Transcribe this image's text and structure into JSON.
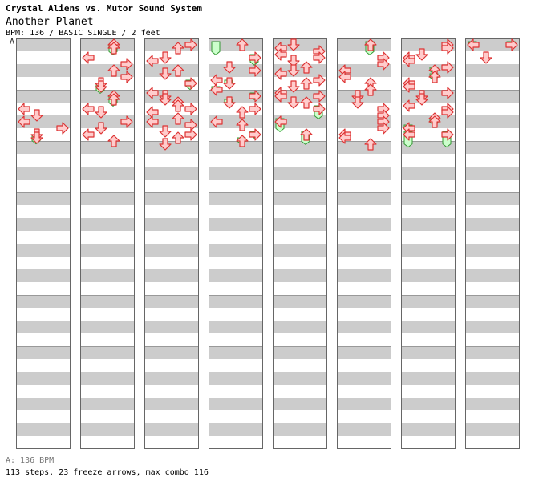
{
  "header": {
    "title": "Crystal Aliens vs. Mutor Sound System",
    "song": "Another Planet",
    "meta": "BPM: 136 / BASIC SINGLE / 2 feet",
    "bpm_marker": "A"
  },
  "footer": {
    "bpm_line": "A: 136 BPM",
    "stats": "113 steps, 23 freeze arrows, max combo 116"
  },
  "colors": {
    "stripe": "#cccccc",
    "arrow_fill": "#ffcccc",
    "arrow_stroke": "#dd3333",
    "freeze_fill": "#ccffcc",
    "freeze_stroke": "#339933",
    "frame": "#666666"
  },
  "chart_data": {
    "type": "step-chart",
    "columns": 8,
    "measures_per_column": 8,
    "lanes": [
      "left",
      "down",
      "up",
      "right"
    ],
    "beats_per_measure": 4,
    "arrows": [
      [
        0,
        5.0,
        "left"
      ],
      [
        0,
        5.5,
        "down"
      ],
      [
        0,
        6.0,
        "left"
      ],
      [
        0,
        6.5,
        "right"
      ],
      [
        0,
        7.0,
        "down"
      ],
      [
        0,
        7.25,
        "down"
      ],
      [
        1,
        0.0,
        "up"
      ],
      [
        1,
        0.25,
        "up"
      ],
      [
        1,
        1.0,
        "left"
      ],
      [
        1,
        1.5,
        "right"
      ],
      [
        1,
        2.0,
        "up"
      ],
      [
        1,
        2.5,
        "right"
      ],
      [
        1,
        3.0,
        "down"
      ],
      [
        1,
        3.25,
        "down"
      ],
      [
        1,
        4.0,
        "up"
      ],
      [
        1,
        4.25,
        "up"
      ],
      [
        1,
        5.0,
        "left"
      ],
      [
        1,
        5.25,
        "down"
      ],
      [
        1,
        6.0,
        "right"
      ],
      [
        1,
        6.5,
        "down"
      ],
      [
        1,
        7.0,
        "left"
      ],
      [
        1,
        7.5,
        "up"
      ],
      [
        2,
        0.0,
        "right"
      ],
      [
        2,
        0.25,
        "up"
      ],
      [
        2,
        1.0,
        "down"
      ],
      [
        2,
        1.25,
        "left"
      ],
      [
        2,
        2.0,
        "up"
      ],
      [
        2,
        2.25,
        "down"
      ],
      [
        2,
        3.0,
        "right"
      ],
      [
        2,
        3.75,
        "left"
      ],
      [
        2,
        4.0,
        "down"
      ],
      [
        2,
        4.25,
        "down"
      ],
      [
        2,
        4.5,
        "up"
      ],
      [
        2,
        4.75,
        "up"
      ],
      [
        2,
        5.0,
        "right"
      ],
      [
        2,
        5.25,
        "left"
      ],
      [
        2,
        5.75,
        "up"
      ],
      [
        2,
        6.0,
        "left"
      ],
      [
        2,
        6.25,
        "right"
      ],
      [
        2,
        6.75,
        "down"
      ],
      [
        2,
        7.0,
        "right"
      ],
      [
        2,
        7.25,
        "up"
      ],
      [
        2,
        7.75,
        "down"
      ],
      [
        3,
        0.0,
        "up"
      ],
      [
        3,
        1.0,
        "right"
      ],
      [
        3,
        1.75,
        "down"
      ],
      [
        3,
        2.0,
        "right"
      ],
      [
        3,
        2.75,
        "left"
      ],
      [
        3,
        3.0,
        "down"
      ],
      [
        3,
        3.5,
        "left"
      ],
      [
        3,
        4.0,
        "right"
      ],
      [
        3,
        4.5,
        "down"
      ],
      [
        3,
        5.0,
        "right"
      ],
      [
        3,
        5.25,
        "up"
      ],
      [
        3,
        6.0,
        "left"
      ],
      [
        3,
        6.25,
        "up"
      ],
      [
        3,
        7.0,
        "right"
      ],
      [
        3,
        7.5,
        "up"
      ],
      [
        4,
        0.0,
        "down"
      ],
      [
        4,
        0.25,
        "left"
      ],
      [
        4,
        0.5,
        "right"
      ],
      [
        4,
        0.75,
        "left"
      ],
      [
        4,
        1.0,
        "right"
      ],
      [
        4,
        1.25,
        "down"
      ],
      [
        4,
        1.75,
        "up"
      ],
      [
        4,
        2.0,
        "down"
      ],
      [
        4,
        2.25,
        "left"
      ],
      [
        4,
        2.75,
        "right"
      ],
      [
        4,
        3.0,
        "up"
      ],
      [
        4,
        3.25,
        "down"
      ],
      [
        4,
        3.75,
        "left"
      ],
      [
        4,
        4.0,
        "left"
      ],
      [
        4,
        4.0,
        "right"
      ],
      [
        4,
        4.5,
        "down"
      ],
      [
        4,
        4.5,
        "up"
      ],
      [
        4,
        5.0,
        "right"
      ],
      [
        4,
        6.0,
        "left"
      ],
      [
        4,
        7.0,
        "up"
      ],
      [
        5,
        0.0,
        "up"
      ],
      [
        5,
        1.0,
        "right"
      ],
      [
        5,
        1.5,
        "right"
      ],
      [
        5,
        2.0,
        "left"
      ],
      [
        5,
        2.5,
        "left"
      ],
      [
        5,
        3.0,
        "up"
      ],
      [
        5,
        3.5,
        "up"
      ],
      [
        5,
        4.0,
        "down"
      ],
      [
        5,
        4.5,
        "down"
      ],
      [
        5,
        5.0,
        "right"
      ],
      [
        5,
        5.5,
        "right"
      ],
      [
        5,
        6.0,
        "right"
      ],
      [
        5,
        6.5,
        "right"
      ],
      [
        5,
        7.0,
        "left"
      ],
      [
        5,
        7.25,
        "left"
      ],
      [
        5,
        7.75,
        "up"
      ],
      [
        6,
        0.0,
        "right"
      ],
      [
        6,
        0.25,
        "right"
      ],
      [
        6,
        0.75,
        "down"
      ],
      [
        6,
        1.0,
        "left"
      ],
      [
        6,
        1.25,
        "left"
      ],
      [
        6,
        1.75,
        "right"
      ],
      [
        6,
        2.0,
        "up"
      ],
      [
        6,
        2.5,
        "up"
      ],
      [
        6,
        3.0,
        "left"
      ],
      [
        6,
        3.25,
        "left"
      ],
      [
        6,
        3.75,
        "right"
      ],
      [
        6,
        4.0,
        "down"
      ],
      [
        6,
        4.25,
        "down"
      ],
      [
        6,
        4.75,
        "left"
      ],
      [
        6,
        5.0,
        "right"
      ],
      [
        6,
        5.25,
        "right"
      ],
      [
        6,
        5.75,
        "up"
      ],
      [
        6,
        6.0,
        "up"
      ],
      [
        6,
        6.5,
        "left"
      ],
      [
        6,
        7.0,
        "left"
      ],
      [
        6,
        7.0,
        "right"
      ],
      [
        7,
        0.0,
        "left"
      ],
      [
        7,
        0.0,
        "right"
      ],
      [
        7,
        1.0,
        "down"
      ]
    ],
    "freezes": [
      [
        0,
        7.25,
        7.85,
        "down"
      ],
      [
        1,
        0.25,
        0.9,
        "up"
      ],
      [
        1,
        3.25,
        3.9,
        "down"
      ],
      [
        1,
        4.25,
        4.9,
        "up"
      ],
      [
        2,
        3.0,
        3.6,
        "right"
      ],
      [
        3,
        0.0,
        0.9,
        "left"
      ],
      [
        3,
        1.0,
        1.7,
        "right"
      ],
      [
        3,
        3.0,
        3.4,
        "down"
      ],
      [
        3,
        3.5,
        3.9,
        "left"
      ],
      [
        3,
        4.0,
        4.4,
        "right"
      ],
      [
        3,
        4.5,
        4.9,
        "down"
      ],
      [
        3,
        7.0,
        7.4,
        "right"
      ],
      [
        3,
        7.5,
        7.9,
        "up"
      ],
      [
        4,
        5.0,
        5.9,
        "right"
      ],
      [
        4,
        6.0,
        6.9,
        "left"
      ],
      [
        4,
        7.0,
        7.9,
        "up"
      ],
      [
        5,
        0.0,
        0.9,
        "up"
      ],
      [
        6,
        2.0,
        2.4,
        "up"
      ],
      [
        6,
        2.5,
        2.9,
        "up"
      ],
      [
        6,
        6.0,
        6.4,
        "up"
      ],
      [
        6,
        6.5,
        6.9,
        "left"
      ],
      [
        6,
        7.0,
        8.1,
        "left"
      ],
      [
        6,
        7.0,
        8.1,
        "right"
      ],
      [
        7,
        0.0,
        0.2,
        "left"
      ],
      [
        7,
        0.0,
        0.2,
        "right"
      ]
    ]
  }
}
